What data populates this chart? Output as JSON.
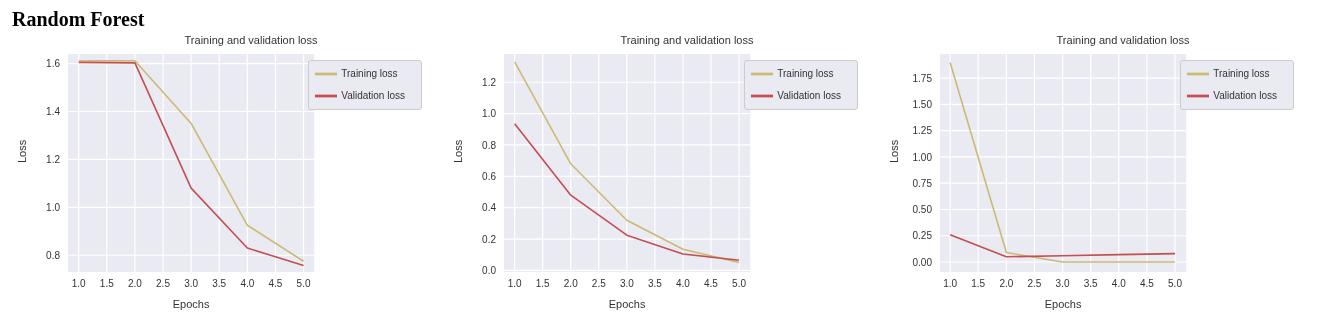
{
  "chart_data": [
    {
      "type": "line",
      "title": "Random Forest",
      "subtitle": "Training and validation loss",
      "xlabel": "Epochs",
      "ylabel": "Loss",
      "x": [
        1,
        2,
        3,
        4,
        5
      ],
      "series": [
        {
          "name": "Training loss",
          "color": "#ccb974",
          "values": [
            1.612,
            1.612,
            1.35,
            0.925,
            0.775
          ]
        },
        {
          "name": "Validation loss",
          "color": "#c44e52",
          "values": [
            1.605,
            1.603,
            1.08,
            0.83,
            0.757
          ]
        }
      ],
      "xlim": [
        0.81,
        5.19
      ],
      "xticks": [
        {
          "value": 1,
          "label": "1.0"
        },
        1.5,
        {
          "value": 2,
          "label": "2.0"
        },
        2.5,
        {
          "value": 3,
          "label": "3.0"
        },
        3.5,
        {
          "value": 4,
          "label": "4.0"
        },
        4.5,
        {
          "value": 5,
          "label": "5.0"
        }
      ],
      "ylim": [
        0.73,
        1.64
      ],
      "yticks": [
        0.8,
        {
          "value": 1,
          "label": "1.0"
        },
        1.2,
        1.4,
        1.6
      ],
      "grid": true,
      "legend": "top right",
      "marker": "none",
      "line_style": "solid"
    },
    {
      "type": "line",
      "subtitle": "Training and validation loss",
      "xlabel": "Epochs",
      "ylabel": "Loss",
      "x": [
        1,
        2,
        3,
        4,
        5
      ],
      "series": [
        {
          "name": "Training loss",
          "color": "#ccb974",
          "values": [
            1.33,
            0.68,
            0.32,
            0.135,
            0.05
          ]
        },
        {
          "name": "Validation loss",
          "color": "#c44e52",
          "values": [
            0.935,
            0.48,
            0.225,
            0.105,
            0.065
          ]
        }
      ],
      "xlim": [
        0.81,
        5.2
      ],
      "xticks": [
        {
          "value": 1,
          "label": "1.0"
        },
        1.5,
        {
          "value": 2,
          "label": "2.0"
        },
        2.5,
        {
          "value": 3,
          "label": "3.0"
        },
        3.5,
        {
          "value": 4,
          "label": "4.0"
        },
        4.5,
        {
          "value": 5,
          "label": "5.0"
        }
      ],
      "ylim": [
        -0.01,
        1.38
      ],
      "yticks": [
        {
          "value": 0,
          "label": "0.0"
        },
        0.2,
        0.4,
        0.6,
        0.8,
        {
          "value": 1,
          "label": "1.0"
        },
        1.2
      ],
      "grid": true,
      "legend": "top right",
      "marker": "none",
      "line_style": "solid"
    },
    {
      "type": "line",
      "subtitle": "Training and validation loss",
      "xlabel": "Epochs",
      "ylabel": "Loss",
      "x": [
        1,
        2,
        3,
        4,
        5
      ],
      "series": [
        {
          "name": "Training loss",
          "color": "#ccb974",
          "values": [
            1.9,
            0.09,
            0,
            0,
            0
          ]
        },
        {
          "name": "Validation loss",
          "color": "#c44e52",
          "values": [
            0.26,
            0.05,
            0.06,
            0.07,
            0.08
          ]
        }
      ],
      "xlim": [
        0.82,
        5.2
      ],
      "xticks": [
        {
          "value": 1,
          "label": "1.0"
        },
        1.5,
        {
          "value": 2,
          "label": "2.0"
        },
        2.5,
        {
          "value": 3,
          "label": "3.0"
        },
        3.5,
        {
          "value": 4,
          "label": "4.0"
        },
        4.5,
        {
          "value": 5,
          "label": "5.0"
        }
      ],
      "ylim": [
        -0.095,
        1.98
      ],
      "yticks": [
        {
          "value": 0,
          "label": "0.00"
        },
        0.25,
        {
          "value": 0.5,
          "label": "0.50"
        },
        0.75,
        {
          "value": 1,
          "label": "1.00"
        },
        1.25,
        {
          "value": 1.5,
          "label": "1.50"
        },
        1.75
      ],
      "grid": true,
      "legend": "top right",
      "marker": "none",
      "line_style": "solid"
    }
  ]
}
